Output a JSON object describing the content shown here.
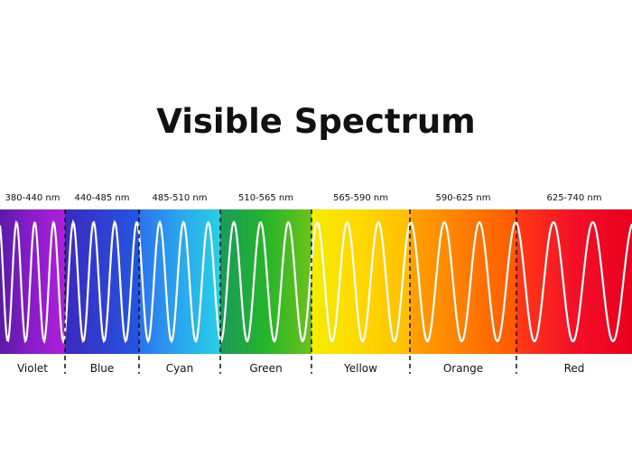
{
  "title": "Visible Spectrum",
  "bands": [
    {
      "range": "380-440 nm",
      "name": "Violet",
      "colors": [
        "#5a1aa8",
        "#8a1ccc",
        "#b01fd8"
      ]
    },
    {
      "range": "440-485 nm",
      "name": "Blue",
      "colors": [
        "#3a2ac0",
        "#2f3fd0",
        "#2456e0"
      ]
    },
    {
      "range": "485-510 nm",
      "name": "Cyan",
      "colors": [
        "#2c72ee",
        "#2aa6ee",
        "#27cfe6"
      ]
    },
    {
      "range": "510-565 nm",
      "name": "Green",
      "colors": [
        "#1a9a5a",
        "#25b52a",
        "#6cc21a"
      ]
    },
    {
      "range": "565-590 nm",
      "name": "Yellow",
      "colors": [
        "#f4ec00",
        "#ffd800",
        "#ffbe00"
      ]
    },
    {
      "range": "590-625 nm",
      "name": "Orange",
      "colors": [
        "#ffa200",
        "#ff7e00",
        "#ff5800"
      ]
    },
    {
      "range": "625-740 nm",
      "name": "Red",
      "colors": [
        "#ff3a14",
        "#f41028",
        "#e8001e"
      ]
    }
  ]
}
